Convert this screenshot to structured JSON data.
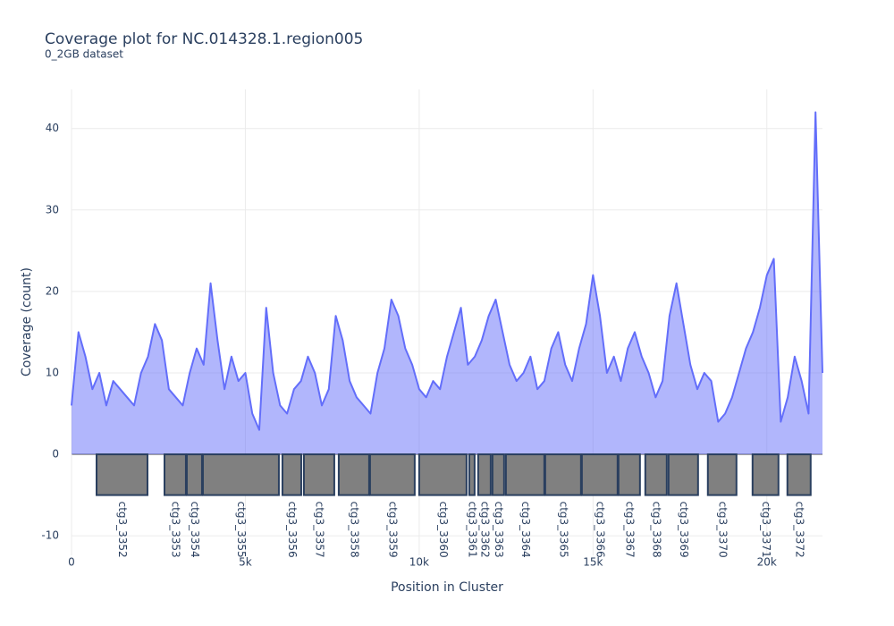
{
  "chart_data": {
    "type": "area",
    "title": "Coverage plot for NC.014328.1.region005",
    "subtitle": "0_2GB dataset",
    "xlabel": "Position in Cluster",
    "ylabel": "Coverage (count)",
    "color": "#636efa",
    "x": [
      0,
      200,
      400,
      600,
      800,
      1000,
      1200,
      1400,
      1600,
      1800,
      2000,
      2200,
      2400,
      2600,
      2800,
      3000,
      3200,
      3400,
      3600,
      3800,
      4000,
      4200,
      4400,
      4600,
      4800,
      5000,
      5200,
      5400,
      5600,
      5800,
      6000,
      6200,
      6400,
      6600,
      6800,
      7000,
      7200,
      7400,
      7600,
      7800,
      8000,
      8200,
      8400,
      8600,
      8800,
      9000,
      9200,
      9400,
      9600,
      9800,
      10000,
      10200,
      10400,
      10600,
      10800,
      11000,
      11200,
      11400,
      11600,
      11800,
      12000,
      12200,
      12400,
      12600,
      12800,
      13000,
      13200,
      13400,
      13600,
      13800,
      14000,
      14200,
      14400,
      14600,
      14800,
      15000,
      15200,
      15400,
      15600,
      15800,
      16000,
      16200,
      16400,
      16600,
      16800,
      17000,
      17200,
      17400,
      17600,
      17800,
      18000,
      18200,
      18400,
      18600,
      18800,
      19000,
      19200,
      19400,
      19600,
      19800,
      20000,
      20200,
      20400,
      20600,
      20800,
      21000,
      21200,
      21400,
      21600
    ],
    "values": [
      6,
      15,
      12,
      8,
      10,
      6,
      9,
      8,
      7,
      6,
      10,
      12,
      16,
      14,
      8,
      7,
      6,
      10,
      13,
      11,
      21,
      14,
      8,
      12,
      9,
      10,
      5,
      3,
      18,
      10,
      6,
      5,
      8,
      9,
      12,
      10,
      6,
      8,
      17,
      14,
      9,
      7,
      6,
      5,
      10,
      13,
      19,
      17,
      13,
      11,
      8,
      7,
      9,
      8,
      12,
      15,
      18,
      11,
      12,
      14,
      17,
      19,
      15,
      11,
      9,
      10,
      12,
      8,
      9,
      13,
      15,
      11,
      9,
      13,
      16,
      22,
      17,
      10,
      12,
      9,
      13,
      15,
      12,
      10,
      7,
      9,
      17,
      21,
      16,
      11,
      8,
      10,
      9,
      4,
      5,
      7,
      10,
      13,
      15,
      18,
      22,
      24,
      4,
      7,
      12,
      9,
      5,
      42,
      10
    ],
    "track_range": [
      -5,
      0
    ],
    "gene_color": "#808080",
    "genes": [
      {
        "label": "ctg3_3352",
        "start": 720,
        "end": 2185
      },
      {
        "label": "ctg3_3353",
        "start": 2674,
        "end": 3290
      },
      {
        "label": "ctg3_3354",
        "start": 3316,
        "end": 3753
      },
      {
        "label": "ctg3_3355",
        "start": 3779,
        "end": 5964
      },
      {
        "label": "ctg3_3356",
        "start": 6067,
        "end": 6607
      },
      {
        "label": "ctg3_3357",
        "start": 6684,
        "end": 7558
      },
      {
        "label": "ctg3_3358",
        "start": 7686,
        "end": 8560
      },
      {
        "label": "ctg3_3359",
        "start": 8586,
        "end": 9871
      },
      {
        "label": "ctg3_3360",
        "start": 10000,
        "end": 11362
      },
      {
        "label": "ctg3_3361",
        "start": 11440,
        "end": 11594
      },
      {
        "label": "ctg3_3362",
        "start": 11697,
        "end": 12057
      },
      {
        "label": "ctg3_3363",
        "start": 12108,
        "end": 12442
      },
      {
        "label": "ctg3_3364",
        "start": 12494,
        "end": 13599
      },
      {
        "label": "ctg3_3365",
        "start": 13625,
        "end": 14653
      },
      {
        "label": "ctg3_3366",
        "start": 14679,
        "end": 15707
      },
      {
        "label": "ctg3_3367",
        "start": 15733,
        "end": 16350
      },
      {
        "label": "ctg3_3368",
        "start": 16504,
        "end": 17121
      },
      {
        "label": "ctg3_3369",
        "start": 17172,
        "end": 18021
      },
      {
        "label": "ctg3_3370",
        "start": 18303,
        "end": 19126
      },
      {
        "label": "ctg3_3371",
        "start": 19589,
        "end": 20334
      },
      {
        "label": "ctg3_3372",
        "start": 20591,
        "end": 21260
      }
    ],
    "xlim": [
      0,
      21600
    ],
    "ylim": [
      -12.4,
      44.8
    ],
    "xticks": [
      0,
      {
        "value": 5000,
        "label": "5k"
      },
      {
        "value": 10000,
        "label": "10k"
      },
      {
        "value": 15000,
        "label": "15k"
      },
      {
        "value": 20000,
        "label": "20k"
      }
    ],
    "yticks": [
      -10,
      0,
      10,
      20,
      30,
      40
    ],
    "grid": true
  }
}
